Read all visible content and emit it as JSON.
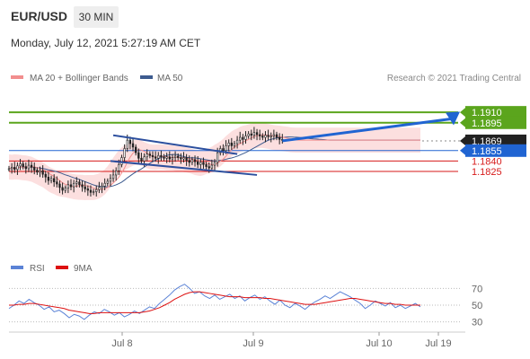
{
  "header": {
    "symbol": "EUR/USD",
    "timeframe": "30 MIN",
    "datetime": "Monday, July 12, 2021 5:27:19 AM CET"
  },
  "legend": {
    "ma20": "MA 20 + Bollinger Bands",
    "ma50": "MA 50",
    "credit": "Research © 2021 Trading Central",
    "rsi": "RSI",
    "rsi_ma": "9MA"
  },
  "colors": {
    "up": "#5ba51d",
    "down": "#d71a1a",
    "blue": "#2064d2",
    "current": "#222222",
    "ma20": "#f28e8e",
    "ma50": "#3d5b8f",
    "rsi": "#5b83d6",
    "rsi_ma": "#dd1111"
  },
  "chart_data": [
    {
      "type": "line",
      "x_ticks": [
        "Jul 8",
        "Jul 9",
        "Jul 10",
        "Jul 19"
      ],
      "ylim": [
        1.17,
        1.1945
      ],
      "current_price": 1.1869,
      "levels": [
        {
          "value": 1.191,
          "label": "1.1910",
          "kind": "resistance"
        },
        {
          "value": 1.1895,
          "label": "1.1895",
          "kind": "resistance"
        },
        {
          "value": 1.1869,
          "label": "1.1869",
          "kind": "current"
        },
        {
          "value": 1.1855,
          "label": "1.1855",
          "kind": "pivot"
        },
        {
          "value": 1.184,
          "label": "1.1840",
          "kind": "support"
        },
        {
          "value": 1.1825,
          "label": "1.1825",
          "kind": "support"
        }
      ],
      "series": [
        {
          "name": "EUR/USD",
          "x": [
            0,
            0.02,
            0.04,
            0.06,
            0.08,
            0.1,
            0.12,
            0.14,
            0.16,
            0.18,
            0.2,
            0.22,
            0.24,
            0.26,
            0.28,
            0.3,
            0.32,
            0.34,
            0.36,
            0.38,
            0.4,
            0.42,
            0.44,
            0.46,
            0.48,
            0.5,
            0.52,
            0.54,
            0.56,
            0.58,
            0.6,
            0.62,
            0.64,
            0.66,
            0.68,
            0.7,
            0.72,
            0.74,
            0.76,
            0.78,
            0.8,
            0.82,
            0.84,
            0.86,
            0.88,
            0.9,
            0.92,
            0.94,
            0.96,
            0.98,
            1.0,
            1.02,
            1.04,
            1.06,
            1.08,
            1.1,
            1.12,
            1.14,
            1.16,
            1.18,
            1.2,
            1.22,
            1.24,
            1.26,
            1.28,
            1.3,
            1.32,
            1.34,
            1.36,
            1.38,
            1.4,
            1.42,
            1.44,
            1.46,
            1.48,
            1.5,
            1.52,
            1.54,
            1.56,
            1.58,
            1.6,
            1.62,
            1.64,
            1.66,
            1.68,
            1.7,
            1.72,
            1.74,
            1.76,
            1.78,
            1.8,
            1.82,
            1.84,
            1.86,
            1.88,
            1.9,
            1.92,
            1.94,
            1.96,
            1.98,
            2.0,
            2.02,
            2.04,
            2.06,
            2.08,
            2.1,
            2.12,
            2.14,
            2.16,
            2.18,
            2.2,
            2.22,
            2.24,
            2.26,
            2.28,
            2.3,
            2.32,
            2.34,
            2.36,
            2.38,
            2.4,
            2.42,
            2.44,
            2.46,
            2.48,
            2.5,
            2.52,
            2.54,
            2.56,
            2.58,
            2.6,
            2.62,
            2.64,
            2.66,
            2.68,
            2.7,
            2.72,
            2.74,
            2.76,
            2.78,
            2.8,
            2.82,
            2.84,
            2.86,
            2.88,
            2.9,
            2.92
          ],
          "y": [
            1.1829,
            1.1831,
            1.1828,
            1.1833,
            1.1836,
            1.1832,
            1.1829,
            1.1834,
            1.1831,
            1.1827,
            1.1824,
            1.1826,
            1.1821,
            1.1817,
            1.1812,
            1.1815,
            1.181,
            1.1807,
            1.1802,
            1.1798,
            1.1801,
            1.1806,
            1.1803,
            1.1808,
            1.181,
            1.1806,
            1.1803,
            1.18,
            1.1798,
            1.1795,
            1.1796,
            1.1799,
            1.1802,
            1.1804,
            1.1808,
            1.1811,
            1.1815,
            1.182,
            1.1826,
            1.1835,
            1.1845,
            1.1858,
            1.187,
            1.1865,
            1.186,
            1.1852,
            1.1844,
            1.184,
            1.1846,
            1.185,
            1.1848,
            1.1846,
            1.1844,
            1.1848,
            1.1846,
            1.1844,
            1.1846,
            1.1843,
            1.1845,
            1.1847,
            1.1845,
            1.1843,
            1.1845,
            1.1841,
            1.1838,
            1.1842,
            1.1839,
            1.1835,
            1.1838,
            1.1835,
            1.1832,
            1.183,
            1.1834,
            1.1838,
            1.1852,
            1.1858,
            1.1855,
            1.1862,
            1.1866,
            1.1862,
            1.1865,
            1.187,
            1.1874,
            1.1871,
            1.1876,
            1.1879,
            1.1877,
            1.1881,
            1.1878,
            1.1876,
            1.1874,
            1.1877,
            1.1875,
            1.1876,
            1.1878,
            1.1874,
            1.1871,
            1.187,
            1.187,
            1.187,
            1.187,
            1.187,
            1.187,
            1.187,
            1.187,
            1.187,
            1.187,
            1.187,
            1.187,
            1.187,
            1.187,
            1.187,
            1.187,
            1.187,
            1.187,
            1.187,
            1.187,
            1.187,
            1.187,
            1.187,
            1.187,
            1.187,
            1.187,
            1.187,
            1.187,
            1.187,
            1.187,
            1.187,
            1.187,
            1.187,
            1.187,
            1.187,
            1.187,
            1.187,
            1.187,
            1.187,
            1.187,
            1.187,
            1.187,
            1.187,
            1.187,
            1.187,
            1.187,
            1.187,
            1.187,
            1.187,
            1.187
          ]
        }
      ]
    },
    {
      "type": "line",
      "ylim": [
        20,
        80
      ],
      "y_ticks": [
        70,
        50,
        30
      ],
      "series": [
        {
          "name": "RSI",
          "values": [
            46,
            50,
            55,
            52,
            57,
            53,
            50,
            45,
            48,
            42,
            44,
            40,
            35,
            39,
            37,
            33,
            38,
            42,
            40,
            45,
            42,
            38,
            41,
            36,
            39,
            43,
            40,
            44,
            48,
            46,
            52,
            57,
            62,
            68,
            72,
            75,
            70,
            64,
            66,
            61,
            58,
            62,
            57,
            60,
            63,
            58,
            61,
            55,
            59,
            62,
            57,
            60,
            55,
            51,
            56,
            50,
            47,
            52,
            49,
            45,
            50,
            54,
            57,
            61,
            58,
            62,
            66,
            63,
            60,
            56,
            52,
            46,
            50,
            55,
            52,
            49,
            53,
            47,
            50,
            46,
            49,
            52,
            48
          ]
        },
        {
          "name": "9MA",
          "values": [
            50,
            50,
            51,
            51,
            52,
            52,
            51,
            50,
            49,
            48,
            47,
            46,
            44,
            43,
            42,
            41,
            40,
            40,
            41,
            41,
            41,
            41,
            41,
            41,
            41,
            41,
            41,
            42,
            43,
            45,
            47,
            50,
            53,
            57,
            60,
            63,
            65,
            66,
            66,
            65,
            64,
            63,
            62,
            61,
            60,
            60,
            60,
            59,
            59,
            59,
            59,
            58,
            58,
            57,
            56,
            55,
            54,
            53,
            52,
            51,
            51,
            51,
            52,
            53,
            54,
            55,
            56,
            57,
            58,
            58,
            57,
            56,
            55,
            54,
            53,
            52,
            52,
            51,
            51,
            50,
            50,
            50,
            50
          ]
        }
      ]
    }
  ]
}
